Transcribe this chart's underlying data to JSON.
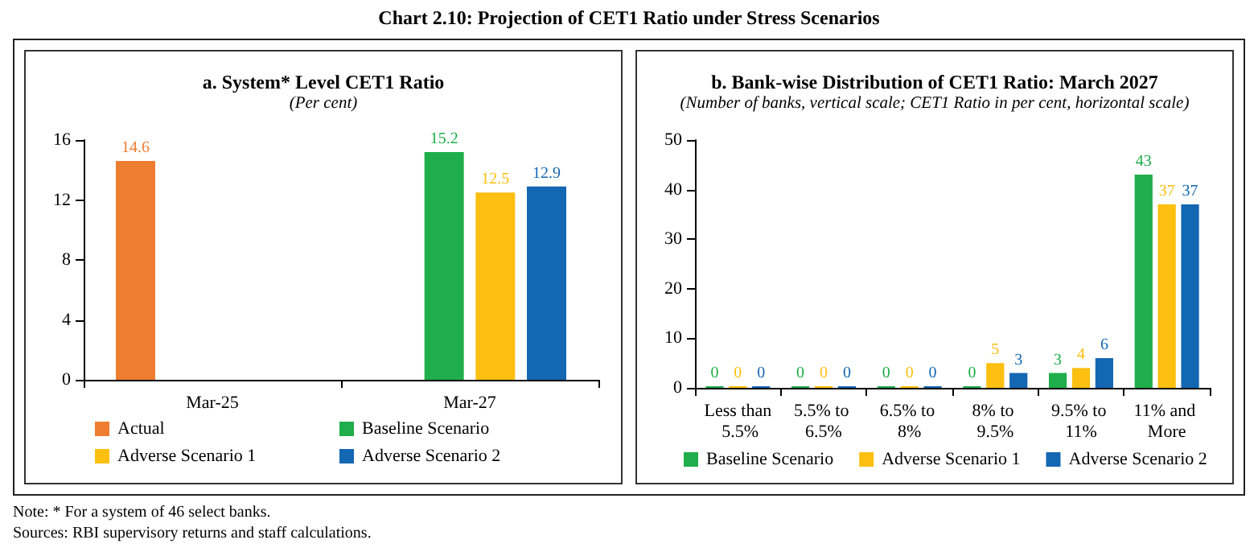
{
  "chart_data": [
    {
      "type": "other",
      "title": "Chart 2.10: Projection of CET1 Ratio under Stress Scenarios",
      "annotations": [
        "Note: * For a system of 46 select banks.",
        "Sources: RBI supervisory returns and staff calculations."
      ]
    },
    {
      "type": "bar",
      "title": "a. System* Level CET1 Ratio",
      "subtitle": "(Per cent)",
      "categories": [
        "Mar-25",
        "Mar-27"
      ],
      "series": [
        {
          "name": "Actual",
          "color": "#ee7d31",
          "values": [
            14.6,
            null
          ]
        },
        {
          "name": "Baseline Scenario",
          "color": "#1fae4b",
          "values": [
            null,
            15.2
          ]
        },
        {
          "name": "Adverse Scenario 1",
          "color": "#fdbf10",
          "values": [
            null,
            12.5
          ]
        },
        {
          "name": "Adverse Scenario 2",
          "color": "#1467b3",
          "values": [
            null,
            12.9
          ]
        }
      ],
      "ylim": [
        0,
        16
      ],
      "yticks": [
        0,
        4,
        8,
        12,
        16
      ],
      "grid": false,
      "legend": "bottom",
      "data_labels": true
    },
    {
      "type": "bar",
      "title": "b. Bank-wise Distribution of CET1 Ratio: March 2027",
      "subtitle": "(Number of banks, vertical scale; CET1 Ratio in per cent, horizontal scale)",
      "categories": [
        "Less than 5.5%",
        "5.5% to 6.5%",
        "6.5% to 8%",
        "8% to 9.5%",
        "9.5% to 11%",
        "11% and More"
      ],
      "series": [
        {
          "name": "Baseline Scenario",
          "color": "#1fae4b",
          "values": [
            0,
            0,
            0,
            0,
            3,
            43
          ]
        },
        {
          "name": "Adverse Scenario 1",
          "color": "#fdbf10",
          "values": [
            0,
            0,
            0,
            5,
            4,
            37
          ]
        },
        {
          "name": "Adverse Scenario 2",
          "color": "#1467b3",
          "values": [
            0,
            0,
            0,
            3,
            6,
            37
          ]
        }
      ],
      "ylim": [
        0,
        50
      ],
      "yticks": [
        0,
        10,
        20,
        30,
        40,
        50
      ],
      "grid": false,
      "legend": "bottom",
      "data_labels": true
    }
  ]
}
